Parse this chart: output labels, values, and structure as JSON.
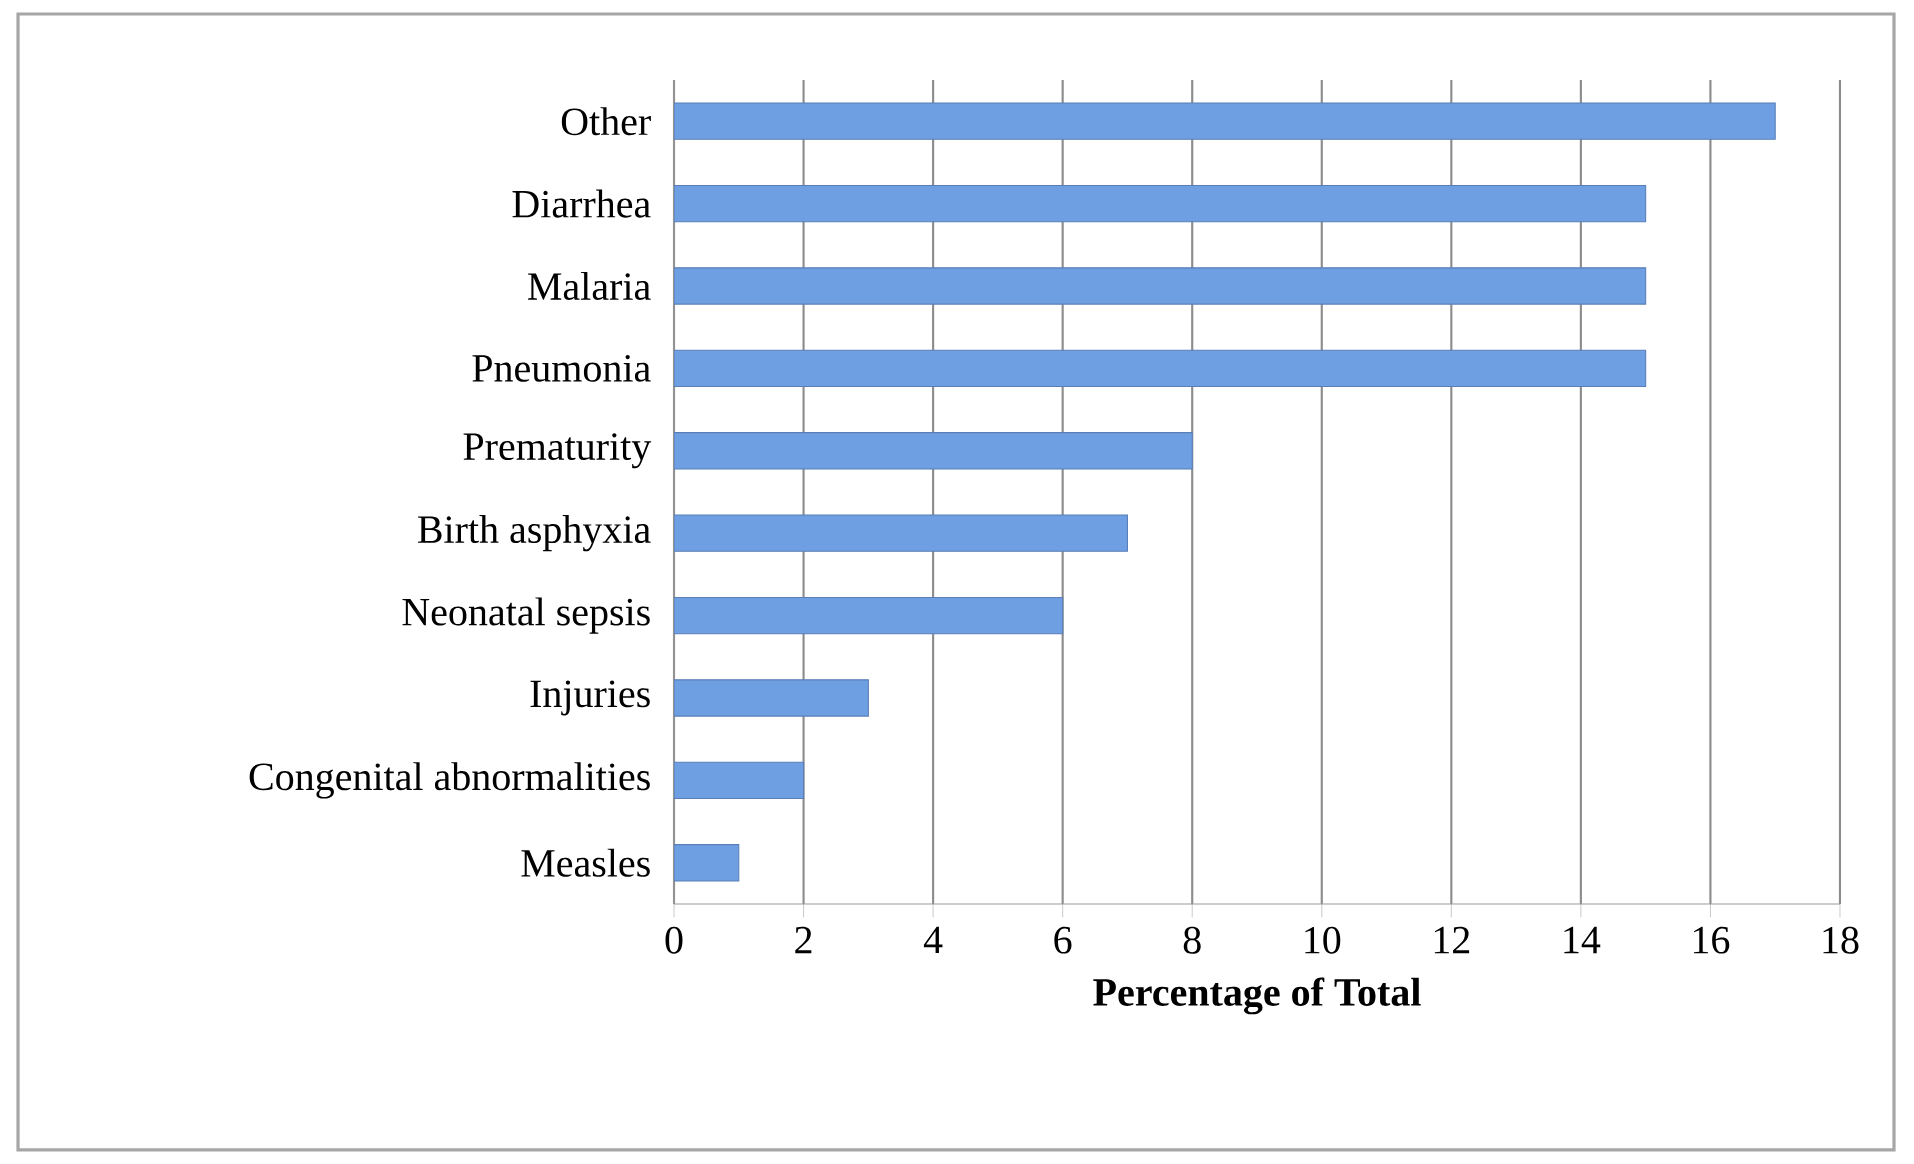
{
  "chart_data": {
    "type": "bar",
    "orientation": "horizontal",
    "xlabel": "Percentage of Total",
    "categories": [
      "Other",
      "Diarrhea",
      "Malaria",
      "Pneumonia",
      "Prematurity",
      "Birth asphyxia",
      "Neonatal sepsis",
      "Injuries",
      "Congenital abnormalities",
      "Measles"
    ],
    "values": [
      17,
      15,
      15,
      15,
      8,
      7,
      6,
      3,
      2,
      1
    ],
    "color": "#6f9fe3",
    "xlim": [
      0,
      18
    ],
    "xticks": [
      0,
      2,
      4,
      6,
      8,
      10,
      12,
      14,
      16,
      18
    ],
    "grid": "x"
  }
}
